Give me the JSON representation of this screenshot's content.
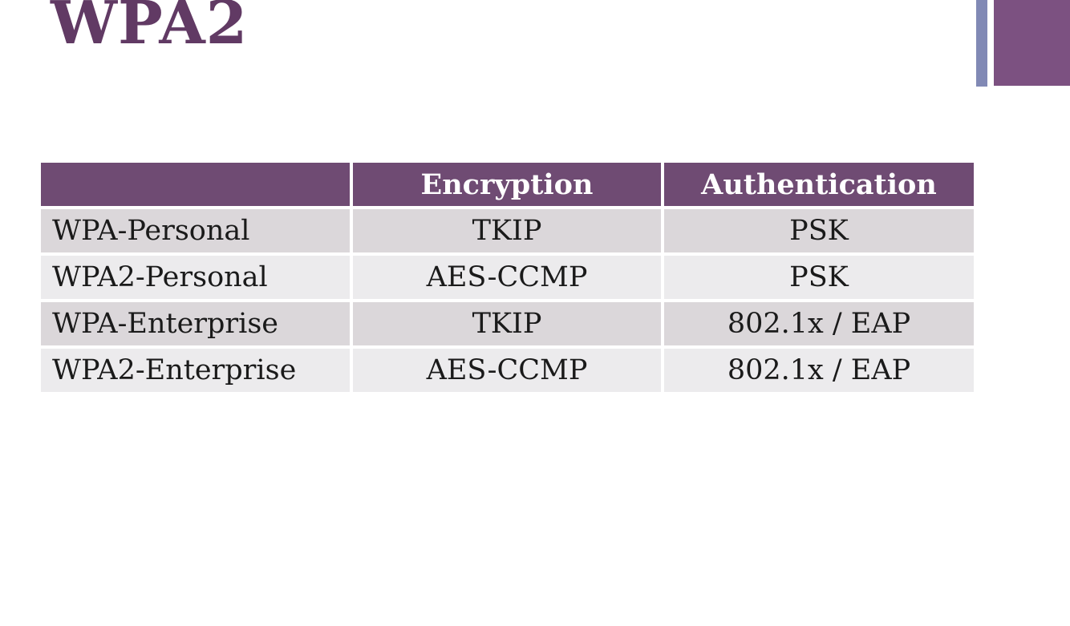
{
  "slide": {
    "title": "WPA2",
    "colors": {
      "title": "#613A64",
      "header_bg": "#6F4B73",
      "header_text": "#FFFFFF",
      "row_dark": "#DBD7DA",
      "row_light": "#ECEBED",
      "cell_text": "#1A1A1A",
      "accent_bar_thin": "#8189B5",
      "accent_bar_wide": "#7C5181"
    }
  },
  "table": {
    "columns": [
      "",
      "Encryption",
      "Authentication"
    ],
    "rows": [
      {
        "label": "WPA-Personal",
        "encryption": "TKIP",
        "authentication": "PSK"
      },
      {
        "label": "WPA2-Personal",
        "encryption": "AES-CCMP",
        "authentication": "PSK"
      },
      {
        "label": "WPA-Enterprise",
        "encryption": "TKIP",
        "authentication": "802.1x / EAP"
      },
      {
        "label": "WPA2-Enterprise",
        "encryption": "AES-CCMP",
        "authentication": "802.1x / EAP"
      }
    ]
  }
}
